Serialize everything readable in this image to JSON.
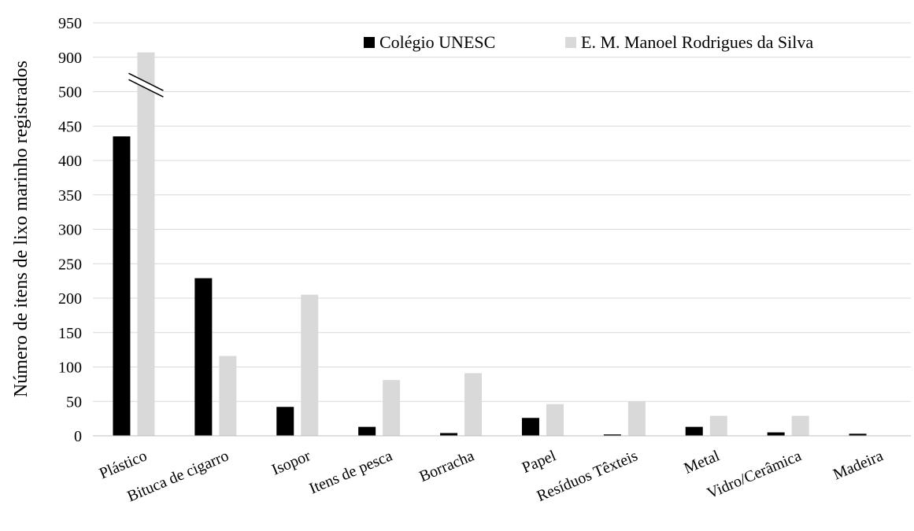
{
  "chart_data": {
    "type": "bar",
    "ylabel": "Número de itens de lixo marinho registrados",
    "xlabel": "",
    "categories": [
      "Plástico",
      "Bituca de cigarro",
      "Isopor",
      "Itens de pesca",
      "Borracha",
      "Papel",
      "Resíduos Têxteis",
      "Metal",
      "Vidro/Cerâmica",
      "Madeira"
    ],
    "series": [
      {
        "name": "Colégio UNESC",
        "color": "#000000",
        "values": [
          435,
          229,
          42,
          13,
          4,
          26,
          2,
          13,
          5,
          3
        ]
      },
      {
        "name": "E. M. Manoel Rodrigues da Silva",
        "color": "#d9d9d9",
        "values": [
          907,
          116,
          205,
          81,
          91,
          46,
          50,
          29,
          29,
          0
        ]
      }
    ],
    "y_ticks": [
      "0",
      "50",
      "100",
      "150",
      "200",
      "250",
      "300",
      "350",
      "400",
      "450",
      "500",
      "900",
      "950"
    ],
    "axis_break": {
      "between": [
        500,
        900
      ],
      "note": "broken y-axis"
    },
    "ylim": [
      0,
      950
    ],
    "grid": true,
    "legend_position": "top-right"
  }
}
